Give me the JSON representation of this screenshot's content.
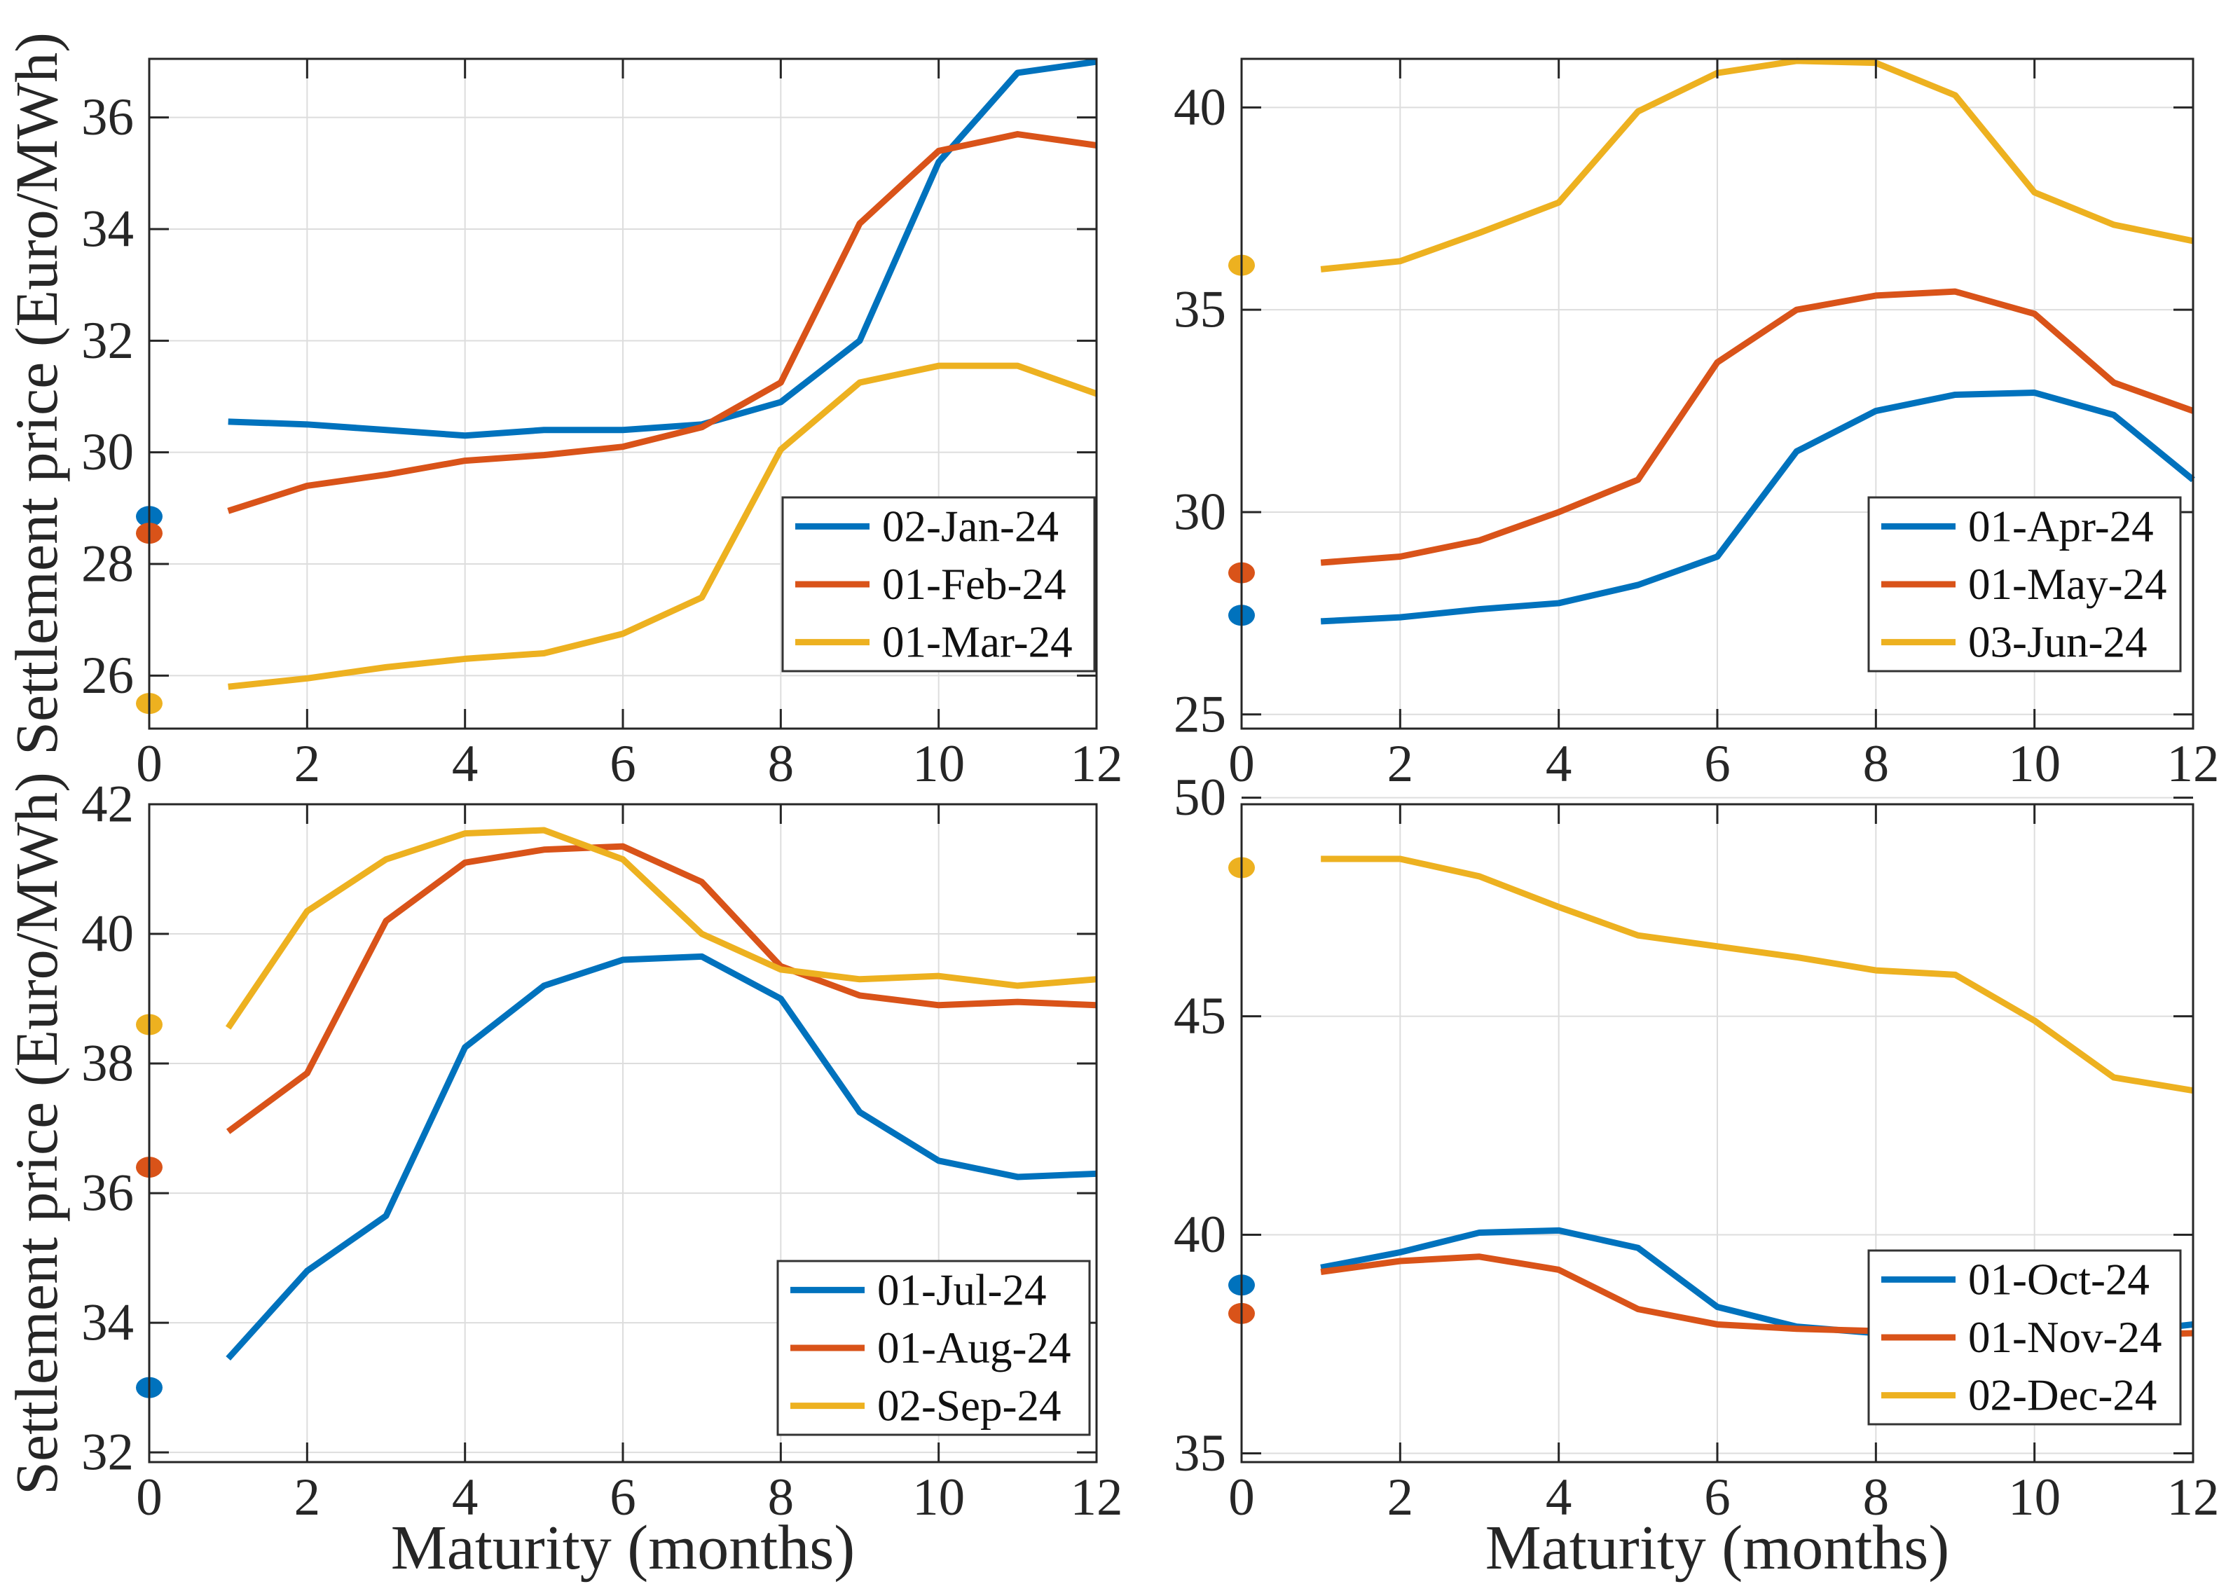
{
  "labels": {
    "ylabel": "Settlement price (Euro/MWh)",
    "xlabel": "Maturity (months)"
  },
  "palette": {
    "series_blue": "#0072BD",
    "series_orange": "#D95319",
    "series_yellow": "#EDB120",
    "axis_frame": "#262626",
    "grid_line": "#DDDDDD",
    "tick_text": "#262626",
    "legend_text": "#111111",
    "legend_border": "#333333",
    "legend_background": "#FFFFFF"
  },
  "chart_data": [
    {
      "type": "line",
      "title": "",
      "xlabel": "",
      "ylabel": "Settlement price (Euro/MWh)",
      "xlim": [
        0,
        12
      ],
      "ylim": [
        25.05,
        37.05
      ],
      "x_ticks": [
        0,
        2,
        4,
        6,
        8,
        10,
        12
      ],
      "y_ticks": [
        26,
        28,
        30,
        32,
        34,
        36
      ],
      "grid": true,
      "legend_position": "lower right",
      "x": [
        1,
        2,
        3,
        4,
        5,
        6,
        7,
        8,
        9,
        10,
        11,
        12
      ],
      "series": [
        {
          "name": "02-Jan-24",
          "color": "series_blue",
          "spot_x0": 28.85,
          "values": [
            30.55,
            30.5,
            30.4,
            30.3,
            30.4,
            30.4,
            30.5,
            30.9,
            32.0,
            35.2,
            36.8,
            37.0
          ]
        },
        {
          "name": "01-Feb-24",
          "color": "series_orange",
          "spot_x0": 28.55,
          "values": [
            28.95,
            29.4,
            29.6,
            29.85,
            29.95,
            30.1,
            30.45,
            31.25,
            34.1,
            35.4,
            35.7,
            35.5
          ]
        },
        {
          "name": "01-Mar-24",
          "color": "series_yellow",
          "spot_x0": 25.5,
          "values": [
            25.8,
            25.95,
            26.15,
            26.3,
            26.4,
            26.75,
            27.4,
            30.05,
            31.25,
            31.55,
            31.55,
            31.05
          ]
        }
      ]
    },
    {
      "type": "line",
      "title": "",
      "xlabel": "",
      "ylabel": "",
      "xlim": [
        0,
        12
      ],
      "ylim": [
        24.65,
        41.2
      ],
      "x_ticks": [
        0,
        2,
        4,
        6,
        8,
        10,
        12
      ],
      "y_ticks": [
        25,
        30,
        35,
        40
      ],
      "grid": true,
      "legend_position": "lower right",
      "x": [
        1,
        2,
        3,
        4,
        5,
        6,
        7,
        8,
        9,
        10,
        11,
        12
      ],
      "series": [
        {
          "name": "01-Apr-24",
          "color": "series_blue",
          "spot_x0": 27.45,
          "values": [
            27.3,
            27.4,
            27.6,
            27.75,
            28.2,
            28.9,
            31.5,
            32.5,
            32.9,
            32.95,
            32.4,
            30.8
          ]
        },
        {
          "name": "01-May-24",
          "color": "series_orange",
          "spot_x0": 28.5,
          "values": [
            28.75,
            28.9,
            29.3,
            30.0,
            30.8,
            33.7,
            35.0,
            35.35,
            35.45,
            34.9,
            33.2,
            32.5
          ]
        },
        {
          "name": "03-Jun-24",
          "color": "series_yellow",
          "spot_x0": 36.1,
          "values": [
            36.0,
            36.2,
            36.9,
            37.65,
            39.9,
            40.85,
            41.15,
            41.1,
            40.3,
            37.9,
            37.1,
            36.7
          ]
        }
      ]
    },
    {
      "type": "line",
      "title": "",
      "xlabel": "Maturity (months)",
      "ylabel": "Settlement price (Euro/MWh)",
      "xlim": [
        0,
        12
      ],
      "ylim": [
        31.85,
        42.0
      ],
      "x_ticks": [
        0,
        2,
        4,
        6,
        8,
        10,
        12
      ],
      "y_ticks": [
        32,
        34,
        36,
        38,
        40,
        42
      ],
      "grid": true,
      "legend_position": "lower right",
      "x": [
        1,
        2,
        3,
        4,
        5,
        6,
        7,
        8,
        9,
        10,
        11,
        12
      ],
      "series": [
        {
          "name": "01-Jul-24",
          "color": "series_blue",
          "spot_x0": 33.0,
          "values": [
            33.45,
            34.8,
            35.65,
            38.25,
            39.2,
            39.6,
            39.65,
            39.0,
            37.25,
            36.5,
            36.25,
            36.3
          ]
        },
        {
          "name": "01-Aug-24",
          "color": "series_orange",
          "spot_x0": 36.4,
          "values": [
            36.95,
            37.85,
            40.2,
            41.1,
            41.3,
            41.35,
            40.8,
            39.5,
            39.05,
            38.9,
            38.95,
            38.9
          ]
        },
        {
          "name": "02-Sep-24",
          "color": "series_yellow",
          "spot_x0": 38.6,
          "values": [
            38.55,
            40.35,
            41.15,
            41.55,
            41.6,
            41.15,
            40.0,
            39.45,
            39.3,
            39.35,
            39.2,
            39.3
          ]
        }
      ]
    },
    {
      "type": "line",
      "title": "",
      "xlabel": "Maturity (months)",
      "ylabel": "",
      "xlim": [
        0,
        12
      ],
      "ylim": [
        34.8,
        49.85
      ],
      "x_ticks": [
        0,
        2,
        4,
        6,
        8,
        10,
        12
      ],
      "y_ticks": [
        35,
        40,
        45,
        50
      ],
      "grid": true,
      "legend_position": "lower right",
      "x": [
        1,
        2,
        3,
        4,
        5,
        6,
        7,
        8,
        9,
        10,
        11,
        12
      ],
      "series": [
        {
          "name": "01-Oct-24",
          "color": "series_blue",
          "spot_x0": 38.85,
          "values": [
            39.25,
            39.6,
            40.05,
            40.1,
            39.7,
            38.35,
            37.9,
            37.75,
            37.65,
            37.65,
            37.75,
            37.95
          ]
        },
        {
          "name": "01-Nov-24",
          "color": "series_orange",
          "spot_x0": 38.2,
          "values": [
            39.15,
            39.4,
            39.5,
            39.2,
            38.3,
            37.95,
            37.85,
            37.8,
            37.7,
            37.7,
            37.7,
            37.75
          ]
        },
        {
          "name": "02-Dec-24",
          "color": "series_yellow",
          "spot_x0": 48.4,
          "values": [
            48.6,
            48.6,
            48.2,
            47.5,
            46.85,
            46.6,
            46.35,
            46.05,
            45.95,
            44.9,
            43.6,
            43.3
          ]
        }
      ]
    }
  ]
}
